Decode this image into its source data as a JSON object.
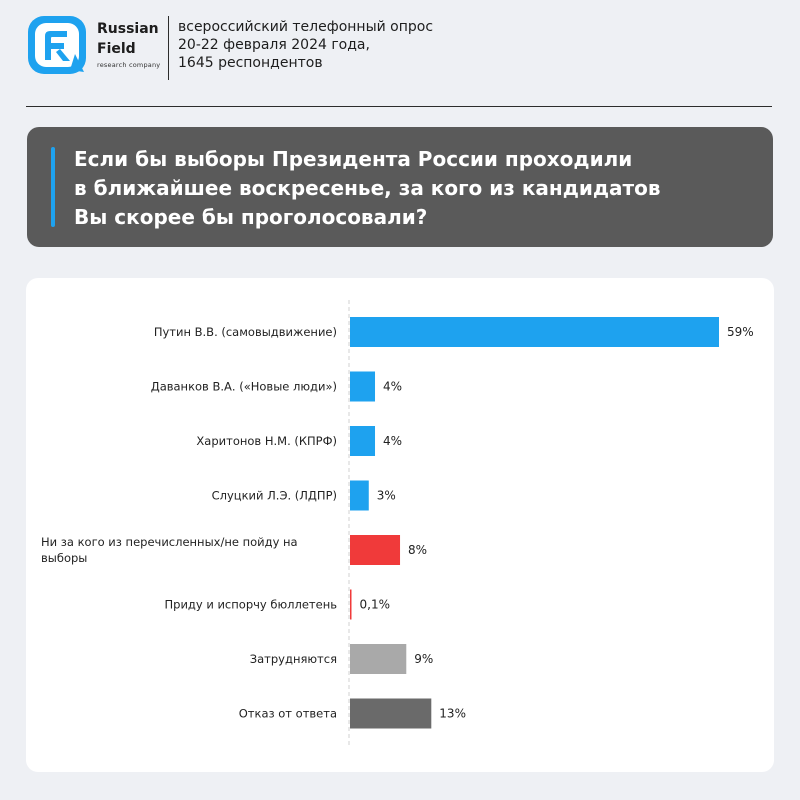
{
  "brand": {
    "name_line1": "Russian",
    "name_line2": "Field",
    "tagline": "research company"
  },
  "survey_info": {
    "line1": "всероссийский телефонный опрос",
    "line2": "20-22 февраля 2024 года,",
    "line3": "1645 респондентов"
  },
  "question": {
    "line1": "Если бы выборы Президента России проходили",
    "line2": "в ближайшее воскресенье, за кого из кандидатов",
    "line3": "Вы скорее бы проголосовали?"
  },
  "colors": {
    "blue": "#1ea2ef",
    "red": "#f03a3a",
    "light_gray": "#a9a9a9",
    "dark_gray": "#6a6a6a",
    "header_box": "#5a5a5a"
  },
  "chart_data": {
    "type": "bar",
    "orientation": "horizontal",
    "categories": [
      [
        "Путин В.В. (самовыдвижение)"
      ],
      [
        "Даванков В.А. («Новые люди»)"
      ],
      [
        "Харитонов Н.М. (КПРФ)"
      ],
      [
        "Слуцкий Л.Э. (ЛДПР)"
      ],
      [
        "Ни за кого из перечисленных/не пойду на",
        "выборы"
      ],
      [
        "Приду и испорчу бюллетень"
      ],
      [
        "Затрудняются"
      ],
      [
        "Отказ от ответа"
      ]
    ],
    "values": [
      59,
      4,
      4,
      3,
      8,
      0.1,
      9,
      13
    ],
    "value_labels": [
      "59%",
      "4%",
      "4%",
      "3%",
      "8%",
      "0,1%",
      "9%",
      "13%"
    ],
    "bar_colors": [
      "#1ea2ef",
      "#1ea2ef",
      "#1ea2ef",
      "#1ea2ef",
      "#f03a3a",
      "#f03a3a",
      "#a9a9a9",
      "#6a6a6a"
    ],
    "unit": "%",
    "xlim": [
      0,
      59
    ]
  }
}
